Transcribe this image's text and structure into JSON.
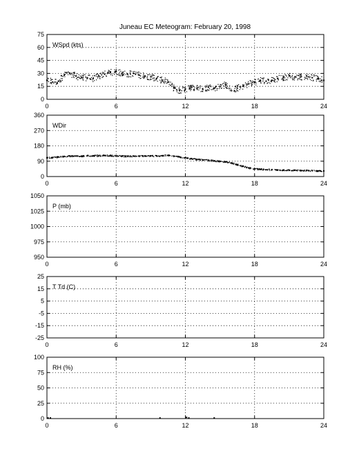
{
  "title": "Juneau EC Meteogram:  February 20, 1998",
  "chart_data": [
    {
      "type": "scatter",
      "panel_label": "WSpd (kts)",
      "xlim": [
        0,
        24
      ],
      "ylim": [
        0,
        75
      ],
      "xticks": [
        0,
        6,
        12,
        18,
        24
      ],
      "yticks": [
        0,
        15,
        30,
        45,
        60,
        75
      ],
      "grid": true,
      "series": [
        {
          "x": [
            0,
            0.5,
            1,
            1.5,
            2,
            2.5,
            3,
            3.5,
            4,
            4.5,
            5,
            5.5,
            6,
            6.5,
            7,
            7.5,
            8,
            8.5,
            9,
            9.5,
            10,
            10.5,
            11,
            11.5,
            12,
            12.5,
            13,
            13.5,
            14,
            14.5,
            15,
            15.5,
            16,
            16.5,
            17,
            17.5,
            18,
            18.5,
            19,
            19.5,
            20,
            20.5,
            21,
            21.5,
            22,
            22.5,
            23,
            23.5,
            24
          ],
          "y": [
            22,
            20,
            21,
            28,
            30,
            27,
            25,
            25,
            24,
            27,
            29,
            31,
            32,
            30,
            29,
            30,
            28,
            27,
            26,
            24,
            22,
            20,
            13,
            10,
            12,
            14,
            13,
            12,
            14,
            13,
            15,
            17,
            10,
            13,
            15,
            18,
            20,
            22,
            21,
            22,
            24,
            25,
            27,
            26,
            26,
            27,
            25,
            24,
            22
          ]
        }
      ]
    },
    {
      "type": "scatter",
      "panel_label": "WDir",
      "xlim": [
        0,
        24
      ],
      "ylim": [
        0,
        360
      ],
      "xticks": [
        0,
        6,
        12,
        18,
        24
      ],
      "yticks": [
        0,
        90,
        180,
        270,
        360
      ],
      "grid": true,
      "series": [
        {
          "x": [
            0,
            0.5,
            1,
            1.5,
            2,
            2.5,
            3,
            3.5,
            4,
            4.5,
            5,
            5.5,
            6,
            6.5,
            7,
            7.5,
            8,
            8.5,
            9,
            9.5,
            10,
            10.5,
            11,
            11.5,
            12,
            12.5,
            13,
            13.5,
            14,
            14.5,
            15,
            15.5,
            16,
            16.5,
            17,
            17.5,
            18,
            18.5,
            19,
            19.5,
            20,
            20.5,
            21,
            21.5,
            22,
            22.5,
            23,
            23.5,
            24
          ],
          "y": [
            110,
            112,
            115,
            118,
            120,
            120,
            120,
            122,
            122,
            122,
            123,
            123,
            121,
            120,
            119,
            120,
            120,
            120,
            121,
            121,
            122,
            124,
            120,
            115,
            110,
            105,
            100,
            98,
            95,
            92,
            88,
            86,
            80,
            70,
            60,
            50,
            45,
            42,
            40,
            40,
            38,
            38,
            37,
            36,
            35,
            35,
            34,
            33,
            33
          ]
        }
      ]
    },
    {
      "type": "line",
      "panel_label": "P (mb)",
      "xlim": [
        0,
        24
      ],
      "ylim": [
        950,
        1050
      ],
      "xticks": [
        0,
        6,
        12,
        18,
        24
      ],
      "yticks": [
        950,
        975,
        1000,
        1025,
        1050
      ],
      "grid": true,
      "series": []
    },
    {
      "type": "line",
      "panel_label": "T Td (C)",
      "xlim": [
        0,
        24
      ],
      "ylim": [
        -25,
        25
      ],
      "xticks": [
        0,
        6,
        12,
        18,
        24
      ],
      "yticks": [
        -25,
        -15,
        -5,
        5,
        15,
        25
      ],
      "grid": true,
      "series": []
    },
    {
      "type": "scatter",
      "panel_label": "RH (%)",
      "xlim": [
        0,
        24
      ],
      "ylim": [
        0,
        100
      ],
      "xticks": [
        0,
        6,
        12,
        18,
        24
      ],
      "yticks": [
        0,
        25,
        50,
        75,
        100
      ],
      "grid": true,
      "series": [
        {
          "x": [
            0.1,
            0.3,
            9.8,
            12.1,
            12.3,
            14.5
          ],
          "y": [
            1,
            1,
            1,
            2,
            1,
            1
          ]
        }
      ]
    }
  ]
}
